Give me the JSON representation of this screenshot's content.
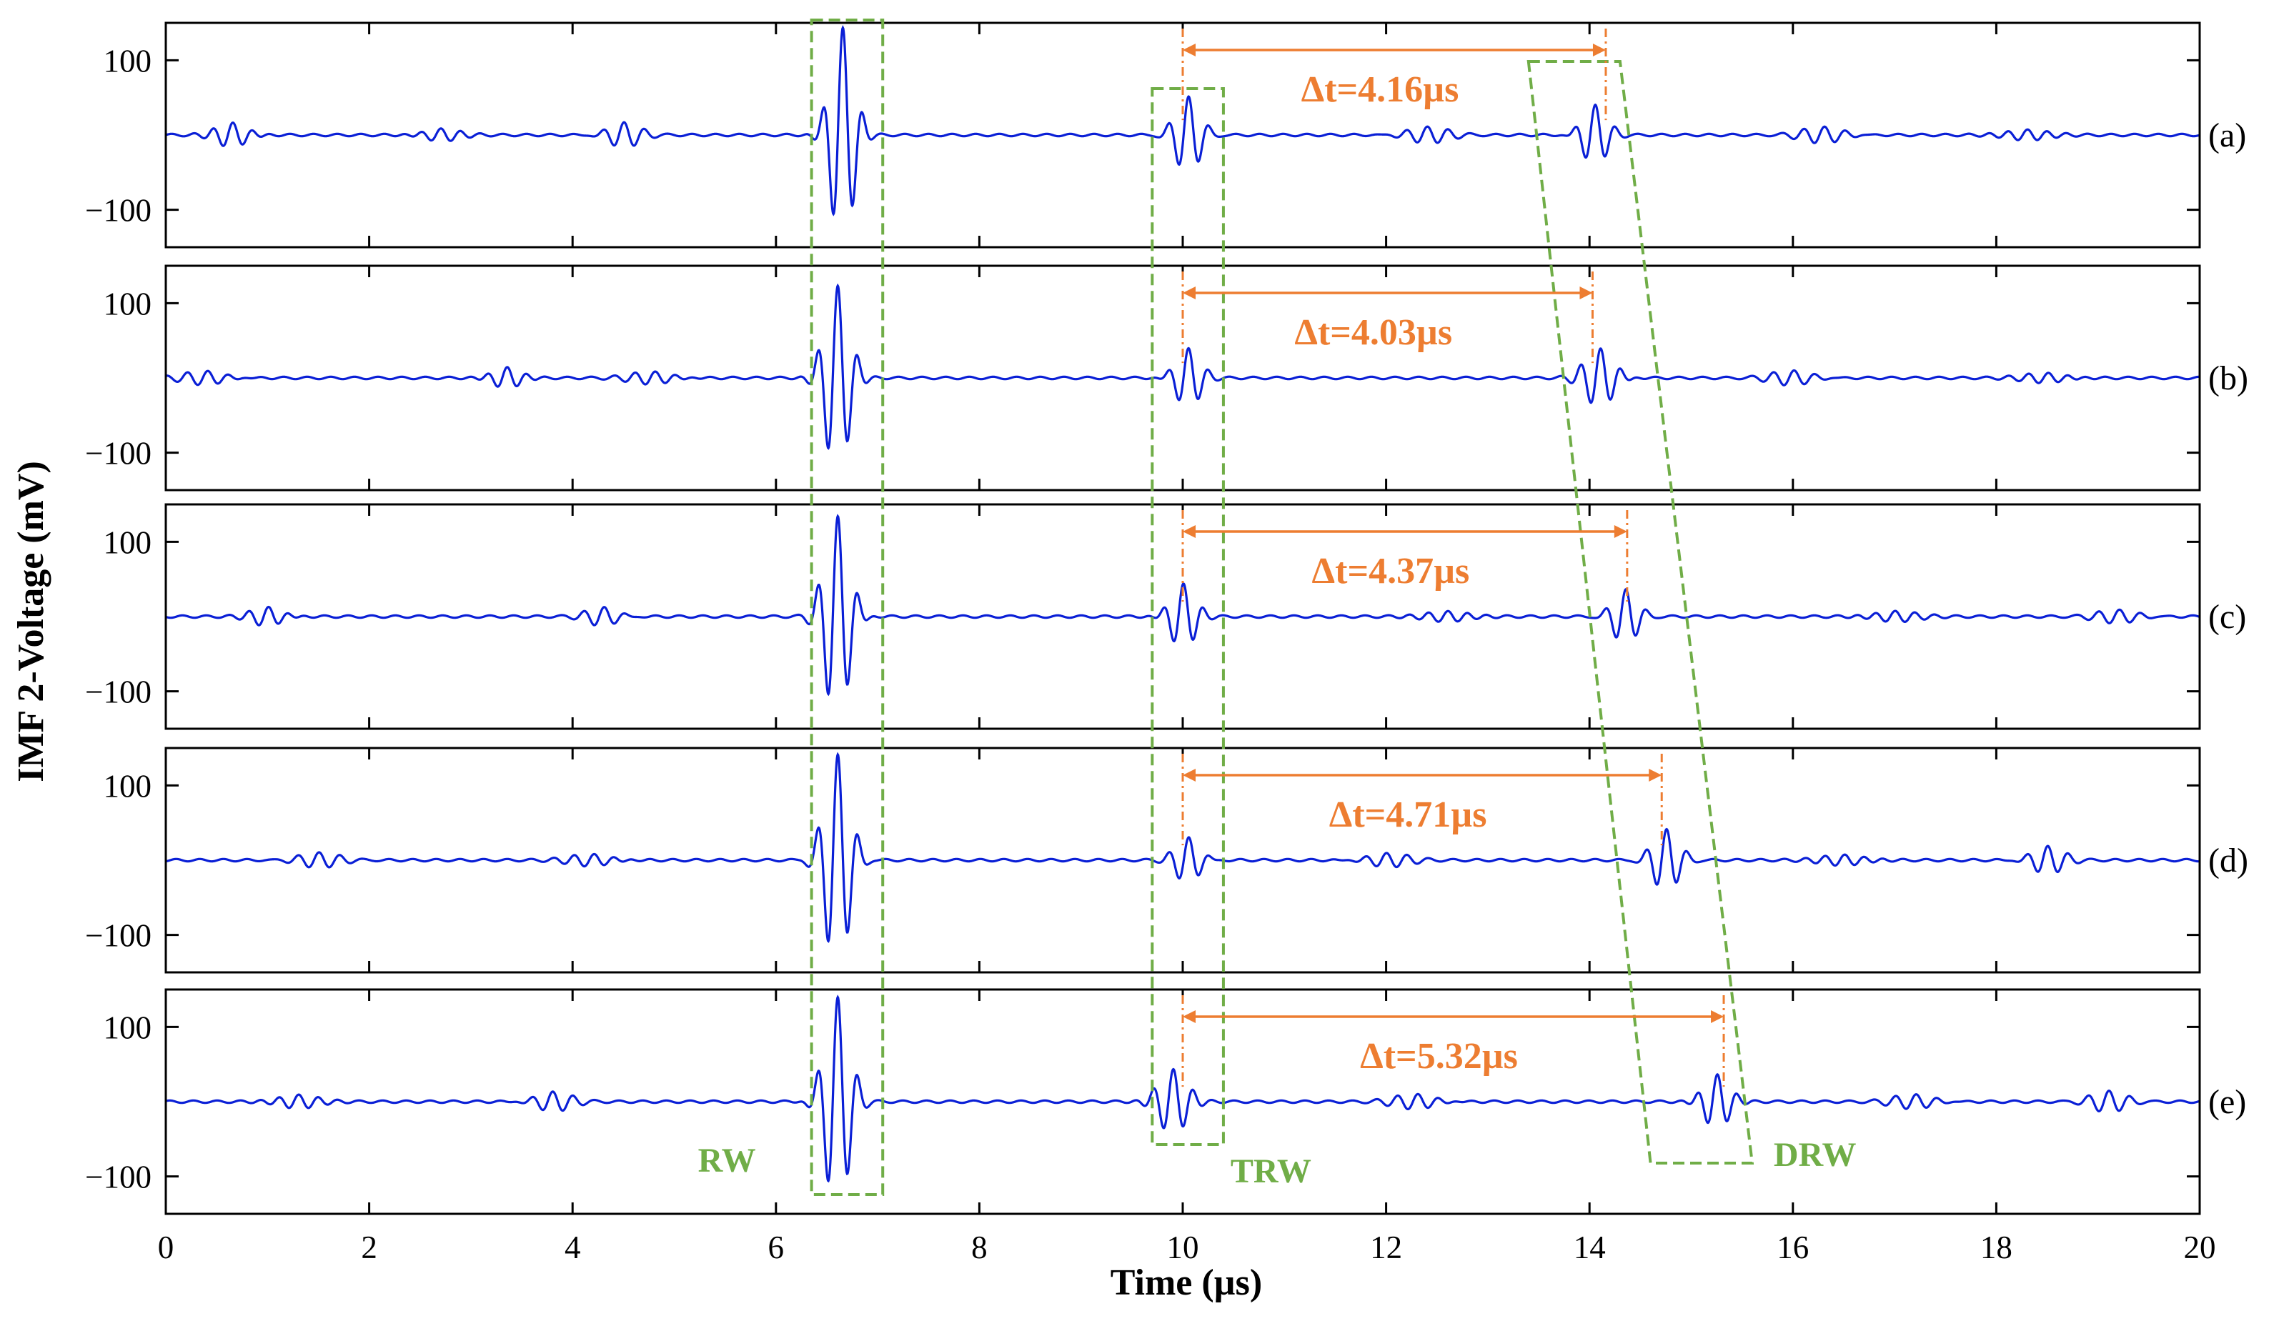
{
  "colors": {
    "signal": "#0a1fd6",
    "annotation": "#ed7d31",
    "box": "#70ad47",
    "axis": "#000000"
  },
  "chart_data": {
    "type": "line",
    "title": "",
    "xlabel": "Time (µs)",
    "ylabel": "IMF 2-Voltage (mV)",
    "xlim": [
      0,
      20
    ],
    "ylim": [
      -150,
      150
    ],
    "x_ticks": [
      0,
      2,
      4,
      6,
      8,
      10,
      12,
      14,
      16,
      18,
      20
    ],
    "x_tick_labels": [
      "0",
      "2",
      "4",
      "6",
      "8",
      "10",
      "12",
      "14",
      "16",
      "18",
      "20"
    ],
    "y_ticks": [
      100,
      -100
    ],
    "y_tick_labels": [
      "100",
      "−100"
    ],
    "carrier_frequency_mhz": 5,
    "panels": [
      {
        "label": "(a)",
        "delta_t_label": "Δt=4.16µs",
        "t_start": 10.0,
        "t_end": 14.16,
        "packets": [
          {
            "center": 0.65,
            "amplitude": 18,
            "width": 0.22
          },
          {
            "center": 2.7,
            "amplitude": 10,
            "width": 0.25
          },
          {
            "center": 4.5,
            "amplitude": 16,
            "width": 0.22
          },
          {
            "center": 6.65,
            "amplitude": 145,
            "width": 0.16
          },
          {
            "center": 10.05,
            "amplitude": 50,
            "width": 0.17
          },
          {
            "center": 12.4,
            "amplitude": 10,
            "width": 0.3
          },
          {
            "center": 14.05,
            "amplitude": 40,
            "width": 0.17
          },
          {
            "center": 16.3,
            "amplitude": 10,
            "width": 0.3
          },
          {
            "center": 18.3,
            "amplitude": 9,
            "width": 0.3
          }
        ]
      },
      {
        "label": "(b)",
        "delta_t_label": "Δt=4.03µs",
        "t_start": 10.0,
        "t_end": 14.03,
        "packets": [
          {
            "center": 0.4,
            "amplitude": 9,
            "width": 0.3
          },
          {
            "center": 3.35,
            "amplitude": 16,
            "width": 0.2
          },
          {
            "center": 4.8,
            "amplitude": 9,
            "width": 0.3
          },
          {
            "center": 6.6,
            "amplitude": 125,
            "width": 0.17
          },
          {
            "center": 10.05,
            "amplitude": 40,
            "width": 0.17
          },
          {
            "center": 14.1,
            "amplitude": 40,
            "width": 0.2
          },
          {
            "center": 16.0,
            "amplitude": 9,
            "width": 0.3
          },
          {
            "center": 18.5,
            "amplitude": 8,
            "width": 0.3
          }
        ]
      },
      {
        "label": "(c)",
        "delta_t_label": "Δt=4.37µs",
        "t_start": 10.0,
        "t_end": 14.37,
        "packets": [
          {
            "center": 1.0,
            "amplitude": 14,
            "width": 0.22
          },
          {
            "center": 4.3,
            "amplitude": 12,
            "width": 0.22
          },
          {
            "center": 6.6,
            "amplitude": 135,
            "width": 0.17
          },
          {
            "center": 10.0,
            "amplitude": 45,
            "width": 0.17
          },
          {
            "center": 12.6,
            "amplitude": 9,
            "width": 0.3
          },
          {
            "center": 14.35,
            "amplitude": 35,
            "width": 0.17
          },
          {
            "center": 17.0,
            "amplitude": 9,
            "width": 0.3
          },
          {
            "center": 19.2,
            "amplitude": 8,
            "width": 0.3
          }
        ]
      },
      {
        "label": "(d)",
        "delta_t_label": "Δt=4.71µs",
        "t_start": 10.0,
        "t_end": 14.71,
        "packets": [
          {
            "center": 1.5,
            "amplitude": 9,
            "width": 0.3
          },
          {
            "center": 4.2,
            "amplitude": 9,
            "width": 0.3
          },
          {
            "center": 6.6,
            "amplitude": 140,
            "width": 0.17
          },
          {
            "center": 10.05,
            "amplitude": 30,
            "width": 0.17
          },
          {
            "center": 12.0,
            "amplitude": 9,
            "width": 0.3
          },
          {
            "center": 14.75,
            "amplitude": 40,
            "width": 0.18
          },
          {
            "center": 16.5,
            "amplitude": 9,
            "width": 0.3
          },
          {
            "center": 18.5,
            "amplitude": 18,
            "width": 0.22
          }
        ]
      },
      {
        "label": "(e)",
        "delta_t_label": "Δt=5.32µs",
        "t_start": 10.0,
        "t_end": 15.32,
        "packets": [
          {
            "center": 1.3,
            "amplitude": 11,
            "width": 0.28
          },
          {
            "center": 3.8,
            "amplitude": 13,
            "width": 0.25
          },
          {
            "center": 6.6,
            "amplitude": 140,
            "width": 0.17
          },
          {
            "center": 9.9,
            "amplitude": 45,
            "width": 0.2
          },
          {
            "center": 12.3,
            "amplitude": 10,
            "width": 0.3
          },
          {
            "center": 15.25,
            "amplitude": 38,
            "width": 0.18
          },
          {
            "center": 17.2,
            "amplitude": 9,
            "width": 0.3
          },
          {
            "center": 19.1,
            "amplitude": 13,
            "width": 0.25
          }
        ]
      }
    ],
    "boxes": [
      {
        "label": "RW",
        "time_top": [
          6.35,
          7.05
        ],
        "time_bottom": [
          6.35,
          7.05
        ]
      },
      {
        "label": "TRW",
        "time_top": [
          9.7,
          10.4
        ],
        "time_bottom": [
          9.7,
          10.4
        ]
      },
      {
        "label": "DRW",
        "time_top": [
          13.4,
          14.3
        ],
        "time_bottom": [
          14.6,
          15.6
        ]
      }
    ],
    "annotations": [
      "RW",
      "TRW",
      "DRW"
    ]
  }
}
